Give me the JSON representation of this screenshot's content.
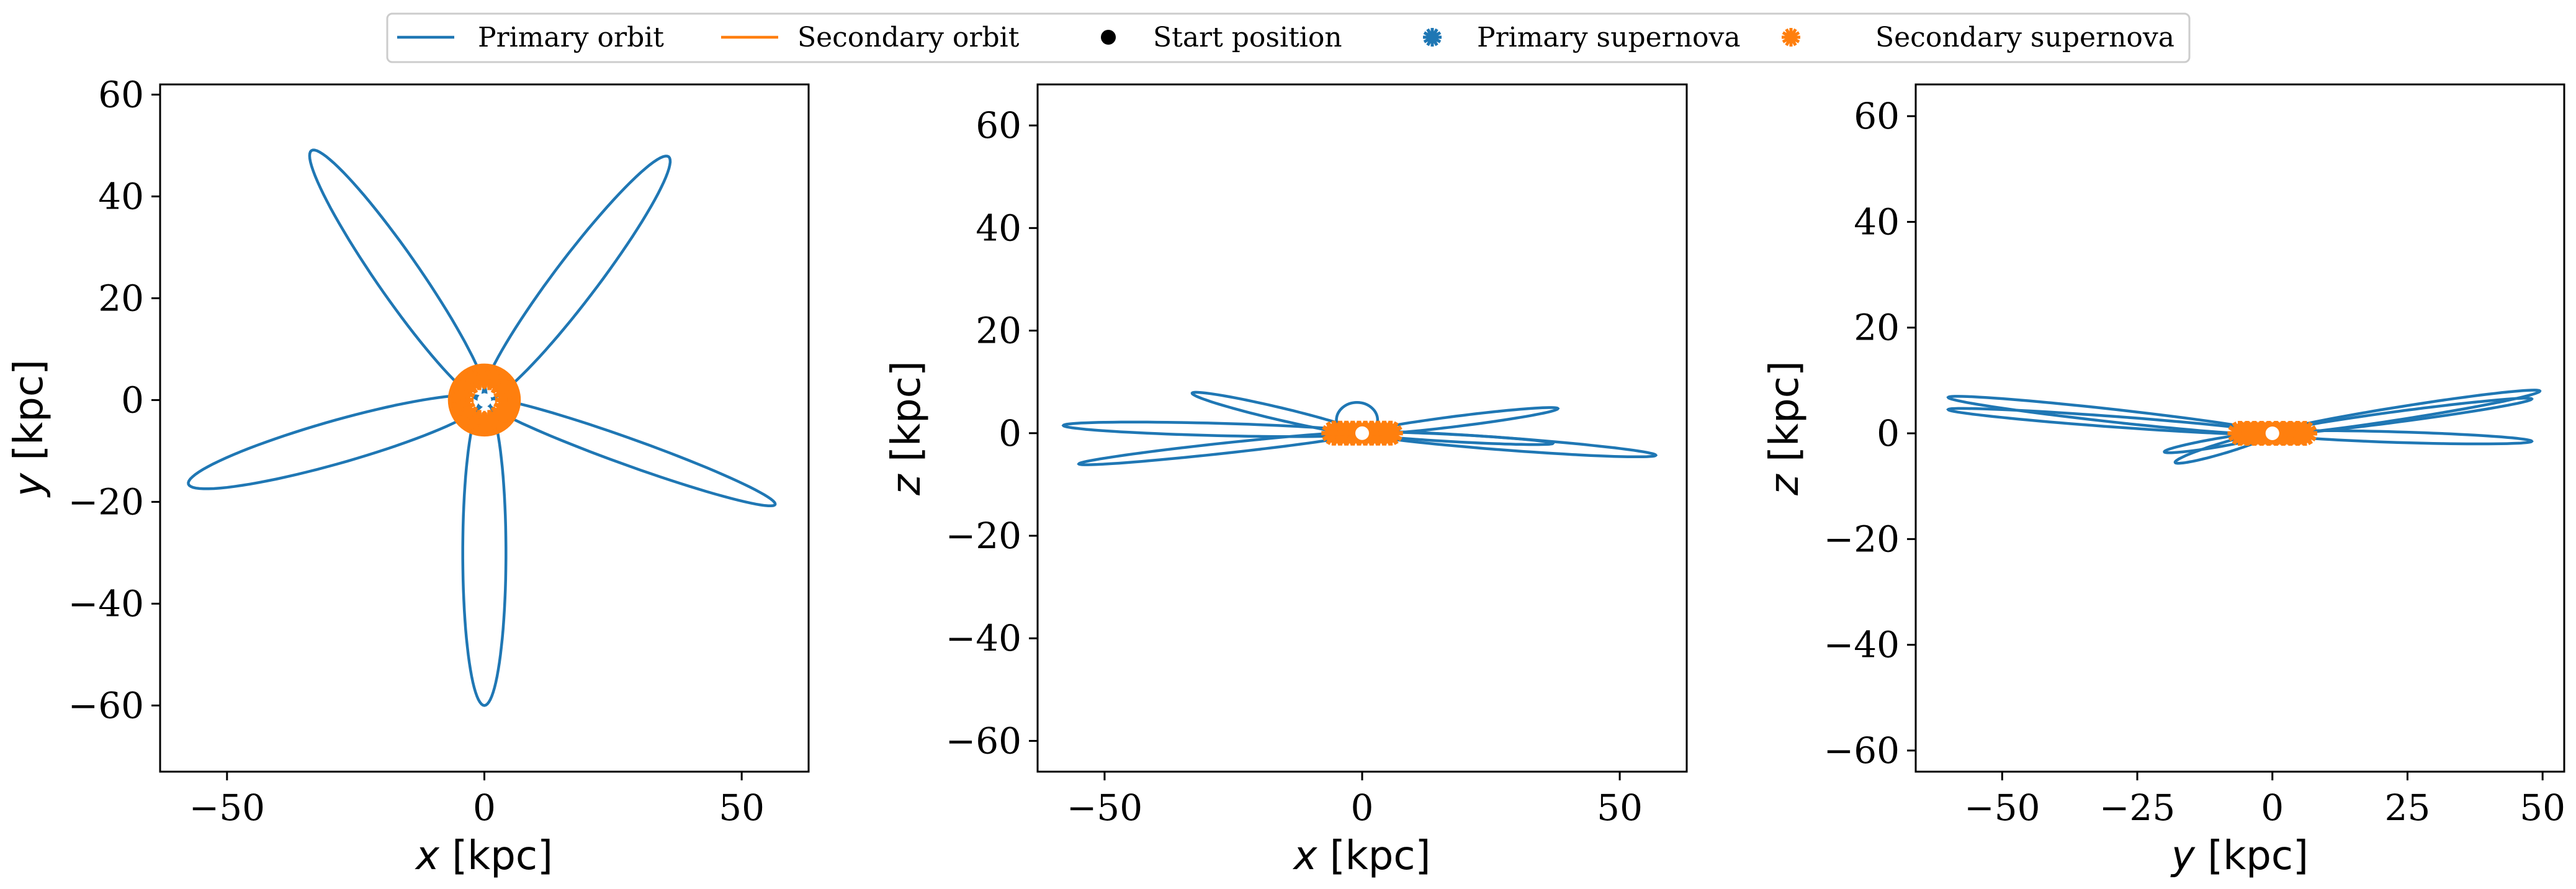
{
  "legend": {
    "placement": "top-center",
    "items": [
      {
        "label": "Primary orbit",
        "kind": "line",
        "color": "#1f77b4"
      },
      {
        "label": "Secondary orbit",
        "kind": "line",
        "color": "#ff7f0e"
      },
      {
        "label": "Start position",
        "kind": "dot",
        "color": "#000000"
      },
      {
        "label": "Primary supernova",
        "kind": "star",
        "color": "#1f77b4"
      },
      {
        "label": "Secondary supernova",
        "kind": "star",
        "color": "#ff7f0e"
      }
    ]
  },
  "colors": {
    "primary": "#1f77b4",
    "secondary": "#ff7f0e",
    "start": "#000000"
  },
  "chart_data": [
    {
      "type": "line",
      "panel": "x-y projection",
      "xvar": "x",
      "xunit": "[kpc]",
      "yvar": "y",
      "yunit": "[kpc]",
      "xlim": [
        -63,
        63
      ],
      "ylim": [
        -73,
        62
      ],
      "xticks": [
        -50,
        0,
        50
      ],
      "yticks": [
        -60,
        -40,
        -20,
        0,
        20,
        40,
        60
      ],
      "grid": false,
      "lobes": [
        {
          "tip": [
            -33.6,
            49.0
          ],
          "half_width": 4.2
        },
        {
          "tip": [
            35.8,
            47.8
          ],
          "half_width": 4.2
        },
        {
          "tip": [
            -57.5,
            -16.5
          ],
          "half_width": 4.2
        },
        {
          "tip": [
            0.0,
            -60.0
          ],
          "half_width": 4.2
        },
        {
          "tip": [
            56.5,
            -20.5
          ],
          "half_width": 2.6
        }
      ],
      "secondary_orbit": {
        "center": [
          0,
          0
        ],
        "radius": 6.0
      },
      "secondary_supernova_markers": {
        "center": [
          0,
          0
        ],
        "radius": 4.5,
        "count": 14
      },
      "start_position": [
        0,
        0
      ]
    },
    {
      "type": "line",
      "panel": "x-z projection",
      "xvar": "x",
      "xunit": "[kpc]",
      "yvar": "z",
      "yunit": "[kpc]",
      "xlim": [
        -63,
        63
      ],
      "ylim": [
        -66,
        68
      ],
      "xticks": [
        -50,
        0,
        50
      ],
      "yticks": [
        -60,
        -40,
        -20,
        0,
        20,
        40,
        60
      ],
      "grid": false,
      "lobes": [
        {
          "tip": [
            -58.0,
            1.5
          ],
          "half_width": 1.2
        },
        {
          "tip": [
            -33.0,
            7.8
          ],
          "half_width": 1.2
        },
        {
          "tip": [
            57.0,
            -4.3
          ],
          "half_width": 1.2
        },
        {
          "tip": [
            38.0,
            4.8
          ],
          "half_width": 1.0
        },
        {
          "tip": [
            -55.0,
            -6.0
          ],
          "half_width": 1.0
        },
        {
          "tip": [
            37.0,
            -2.0
          ],
          "half_width": 0.7
        }
      ],
      "loops": [
        {
          "center": [
            -1.0,
            2.5
          ],
          "rx": 4.0,
          "ry": 3.5
        }
      ],
      "secondary_orbit": {
        "center": [
          0,
          0
        ],
        "half_length": 6.0,
        "half_height": 1.0
      },
      "secondary_supernova_markers": {
        "x_from": -5.5,
        "x_to": 5.5,
        "z": 0,
        "count": 10
      },
      "start_position": [
        0,
        0
      ]
    },
    {
      "type": "line",
      "panel": "y-z projection",
      "xvar": "y",
      "xunit": "[kpc]",
      "yvar": "z",
      "yunit": "[kpc]",
      "xlim": [
        -66,
        54
      ],
      "ylim": [
        -64,
        66
      ],
      "xticks": [
        -50,
        -25,
        0,
        25,
        50
      ],
      "yticks": [
        -60,
        -40,
        -20,
        0,
        20,
        40,
        60
      ],
      "grid": false,
      "lobes": [
        {
          "tip": [
            -60.0,
            6.8
          ],
          "half_width": 1.2
        },
        {
          "tip": [
            -60.0,
            4.5
          ],
          "half_width": 1.0
        },
        {
          "tip": [
            49.5,
            8.0
          ],
          "half_width": 1.2
        },
        {
          "tip": [
            48.0,
            6.5
          ],
          "half_width": 1.0
        },
        {
          "tip": [
            48.0,
            -1.5
          ],
          "half_width": 1.0
        },
        {
          "tip": [
            -18.0,
            -5.5
          ],
          "half_width": 1.0
        },
        {
          "tip": [
            -20.0,
            -3.5
          ],
          "half_width": 0.8
        }
      ],
      "secondary_orbit": {
        "center": [
          0,
          0
        ],
        "half_length": 6.0,
        "half_height": 1.0
      },
      "secondary_supernova_markers": {
        "x_from": -6.0,
        "x_to": 6.0,
        "z": 0,
        "count": 10
      },
      "start_position": [
        0,
        0
      ]
    }
  ]
}
